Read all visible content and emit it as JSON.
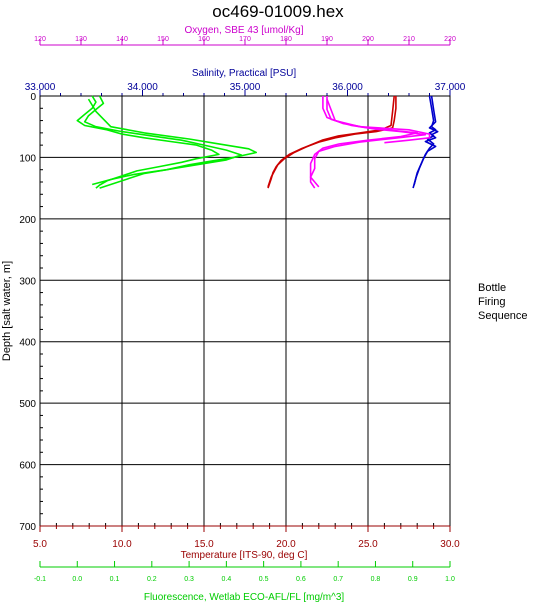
{
  "chart_data": {
    "type": "line",
    "title": "oc469-01009.hex",
    "y_axis": {
      "label": "Depth [salt water, m]",
      "range": [
        0,
        700
      ],
      "ticks": [
        "0",
        "100",
        "200",
        "300",
        "400",
        "500",
        "600",
        "700"
      ],
      "inverted": true
    },
    "top_axes": [
      {
        "key": "oxygen",
        "label": "Oxygen, SBE 43 [umol/Kg]",
        "color": "#cc00cc",
        "range": [
          120,
          220
        ],
        "ticks": [
          "120",
          "130",
          "140",
          "150",
          "160",
          "170",
          "180",
          "190",
          "200",
          "210",
          "220"
        ]
      },
      {
        "key": "salinity",
        "label": "Salinity, Practical [PSU]",
        "color": "#000099",
        "range": [
          33.0,
          37.0
        ],
        "ticks": [
          "33.000",
          "34.000",
          "35.000",
          "36.000",
          "37.000"
        ]
      }
    ],
    "bottom_axes": [
      {
        "key": "temperature",
        "label": "Temperature [ITS-90, deg C]",
        "color": "#990000",
        "range": [
          5.0,
          30.0
        ],
        "ticks": [
          "5.0",
          "10.0",
          "15.0",
          "20.0",
          "25.0",
          "30.0"
        ]
      },
      {
        "key": "fluorescence",
        "label": "Fluorescence, Wetlab ECO-AFL/FL [mg/m^3]",
        "color": "#00cc00",
        "range": [
          -0.1,
          1.0
        ],
        "ticks": [
          "-0.1",
          "0.0",
          "0.1",
          "0.2",
          "0.3",
          "0.4",
          "0.5",
          "0.6",
          "0.7",
          "0.8",
          "0.9",
          "1.0"
        ]
      }
    ],
    "grid": true,
    "series": [
      {
        "axis": "temperature",
        "color": "#cc0000",
        "points": [
          [
            26.7,
            0
          ],
          [
            26.7,
            20
          ],
          [
            26.6,
            40
          ],
          [
            26.5,
            52
          ],
          [
            25.5,
            58
          ],
          [
            24.2,
            62
          ],
          [
            23.0,
            68
          ],
          [
            22.0,
            75
          ],
          [
            21.0,
            85
          ],
          [
            20.2,
            95
          ],
          [
            19.7,
            105
          ],
          [
            19.4,
            115
          ],
          [
            19.2,
            125
          ],
          [
            19.1,
            135
          ],
          [
            18.9,
            150
          ]
        ]
      },
      {
        "axis": "temperature",
        "color": "#cc0000",
        "points": [
          [
            26.6,
            0
          ],
          [
            26.5,
            25
          ],
          [
            26.4,
            48
          ],
          [
            25.8,
            55
          ],
          [
            24.5,
            60
          ],
          [
            23.2,
            65
          ],
          [
            22.2,
            72
          ],
          [
            21.3,
            82
          ],
          [
            20.5,
            92
          ],
          [
            19.9,
            102
          ],
          [
            19.5,
            112
          ],
          [
            19.3,
            122
          ],
          [
            19.1,
            132
          ],
          [
            18.9,
            148
          ]
        ]
      },
      {
        "axis": "salinity",
        "color": "#0000cc",
        "points": [
          [
            36.8,
            0
          ],
          [
            36.82,
            20
          ],
          [
            36.84,
            40
          ],
          [
            36.82,
            50
          ],
          [
            36.86,
            55
          ],
          [
            36.8,
            60
          ],
          [
            36.84,
            65
          ],
          [
            36.78,
            70
          ],
          [
            36.84,
            78
          ],
          [
            36.8,
            85
          ],
          [
            36.76,
            95
          ],
          [
            36.72,
            110
          ],
          [
            36.68,
            125
          ],
          [
            36.66,
            138
          ],
          [
            36.64,
            150
          ]
        ]
      },
      {
        "axis": "salinity",
        "color": "#0000cc",
        "points": [
          [
            36.82,
            0
          ],
          [
            36.84,
            22
          ],
          [
            36.86,
            42
          ],
          [
            36.8,
            52
          ],
          [
            36.88,
            58
          ],
          [
            36.82,
            63
          ],
          [
            36.86,
            68
          ],
          [
            36.76,
            74
          ],
          [
            36.86,
            82
          ],
          [
            36.78,
            90
          ],
          [
            36.74,
            102
          ],
          [
            36.7,
            118
          ],
          [
            36.67,
            132
          ],
          [
            36.65,
            145
          ]
        ]
      },
      {
        "axis": "oxygen",
        "color": "#ff00ff",
        "points": [
          [
            189,
            0
          ],
          [
            189,
            20
          ],
          [
            190,
            35
          ],
          [
            194,
            45
          ],
          [
            200,
            52
          ],
          [
            206,
            56
          ],
          [
            212,
            60
          ],
          [
            208,
            66
          ],
          [
            200,
            72
          ],
          [
            193,
            78
          ],
          [
            189,
            85
          ],
          [
            187,
            95
          ],
          [
            186,
            110
          ],
          [
            186,
            125
          ],
          [
            186,
            140
          ],
          [
            187,
            150
          ]
        ]
      },
      {
        "axis": "oxygen",
        "color": "#ff00ff",
        "points": [
          [
            190,
            0
          ],
          [
            190,
            22
          ],
          [
            191,
            38
          ],
          [
            196,
            48
          ],
          [
            202,
            54
          ],
          [
            208,
            58
          ],
          [
            214,
            63
          ],
          [
            206,
            69
          ],
          [
            198,
            75
          ],
          [
            192,
            82
          ],
          [
            188,
            90
          ],
          [
            187,
            102
          ],
          [
            187,
            118
          ],
          [
            186,
            132
          ],
          [
            188,
            148
          ]
        ]
      },
      {
        "axis": "oxygen",
        "color": "#ff00ff",
        "points": [
          [
            190,
            5
          ],
          [
            192,
            40
          ],
          [
            198,
            50
          ],
          [
            210,
            55
          ],
          [
            215,
            62
          ],
          [
            215,
            68
          ],
          [
            210,
            72
          ],
          [
            204,
            76
          ]
        ]
      },
      {
        "axis": "fluorescence",
        "color": "#00ee00",
        "points": [
          [
            0.04,
            0
          ],
          [
            0.05,
            10
          ],
          [
            0.04,
            20
          ],
          [
            0.02,
            30
          ],
          [
            0.0,
            40
          ],
          [
            0.02,
            48
          ],
          [
            0.08,
            55
          ],
          [
            0.12,
            62
          ],
          [
            0.18,
            68
          ],
          [
            0.25,
            74
          ],
          [
            0.32,
            80
          ],
          [
            0.36,
            88
          ],
          [
            0.38,
            95
          ],
          [
            0.32,
            102
          ],
          [
            0.28,
            108
          ],
          [
            0.22,
            115
          ],
          [
            0.16,
            122
          ],
          [
            0.12,
            130
          ],
          [
            0.08,
            138
          ],
          [
            0.06,
            145
          ],
          [
            0.05,
            150
          ]
        ]
      },
      {
        "axis": "fluorescence",
        "color": "#00ee00",
        "points": [
          [
            0.06,
            0
          ],
          [
            0.07,
            12
          ],
          [
            0.05,
            22
          ],
          [
            0.03,
            32
          ],
          [
            0.02,
            42
          ],
          [
            0.05,
            50
          ],
          [
            0.12,
            58
          ],
          [
            0.2,
            65
          ],
          [
            0.28,
            72
          ],
          [
            0.34,
            80
          ],
          [
            0.4,
            88
          ],
          [
            0.44,
            96
          ],
          [
            0.4,
            104
          ],
          [
            0.34,
            110
          ],
          [
            0.26,
            118
          ],
          [
            0.18,
            126
          ],
          [
            0.14,
            134
          ],
          [
            0.1,
            142
          ],
          [
            0.06,
            150
          ]
        ]
      },
      {
        "axis": "fluorescence",
        "color": "#00ee00",
        "points": [
          [
            0.03,
            5
          ],
          [
            0.05,
            25
          ],
          [
            0.09,
            50
          ],
          [
            0.18,
            60
          ],
          [
            0.3,
            70
          ],
          [
            0.38,
            78
          ],
          [
            0.46,
            86
          ],
          [
            0.48,
            92
          ],
          [
            0.42,
            100
          ],
          [
            0.36,
            106
          ],
          [
            0.3,
            112
          ],
          [
            0.24,
            120
          ],
          [
            0.15,
            128
          ],
          [
            0.09,
            136
          ],
          [
            0.04,
            144
          ]
        ]
      }
    ],
    "side_labels": [
      "Bottle",
      "Firing",
      "Sequence"
    ]
  }
}
